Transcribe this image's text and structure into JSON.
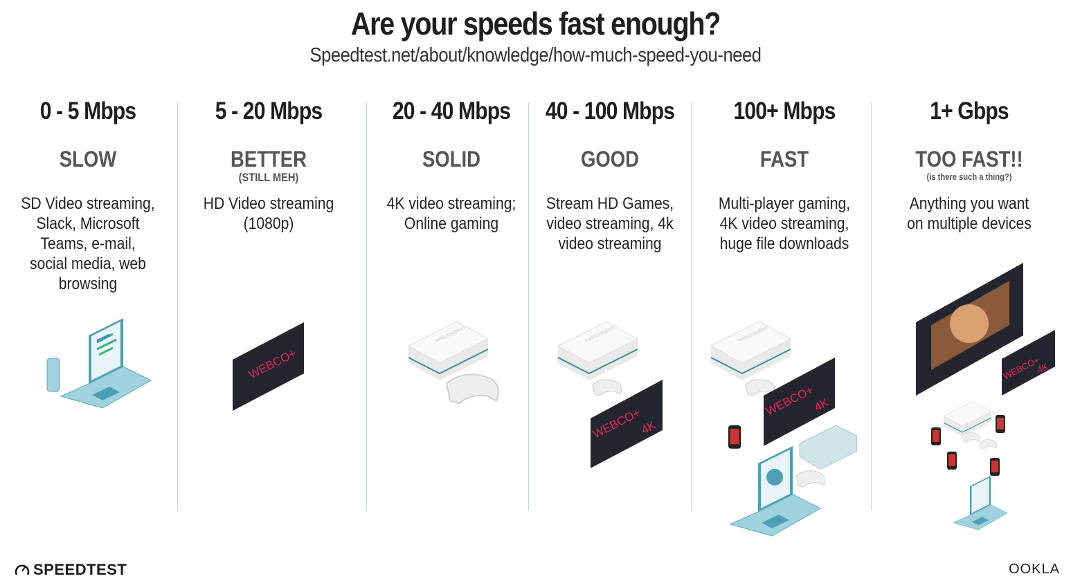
{
  "header": {
    "title": "Are your speeds fast enough?",
    "subtitle": "Speedtest.net/about/knowledge/how-much-speed-you-need"
  },
  "tiers": [
    {
      "speed": "0 - 5 Mbps",
      "rating": "SLOW",
      "note": "",
      "description": "SD Video streaming, Slack, Microsoft Teams, e-mail, social media, web browsing"
    },
    {
      "speed": "5 - 20 Mbps",
      "rating": "BETTER",
      "note": "(STILL MEH)",
      "description": "HD Video streaming (1080p)"
    },
    {
      "speed": "20 - 40 Mbps",
      "rating": "SOLID",
      "note": "",
      "description": "4K video streaming; Online gaming"
    },
    {
      "speed": "40 - 100 Mbps",
      "rating": "GOOD",
      "note": "",
      "description": "Stream HD Games, video streaming, 4k video streaming"
    },
    {
      "speed": "100+ Mbps",
      "rating": "FAST",
      "note": "",
      "description": "Multi-player gaming, 4K video streaming, huge file downloads"
    },
    {
      "speed": "1+ Gbps",
      "rating": "TOO FAST!!",
      "note": "(is there such a thing?)",
      "description": "Anything you want on multiple devices"
    }
  ],
  "illustrations": {
    "tv_brand": "WEBCO+",
    "tv_4k": "4K",
    "console_brand": "webcostation"
  },
  "footer": {
    "left_logo": "SPEEDTEST",
    "right_logo": "OOKLA"
  },
  "colors": {
    "tv": "#23262e",
    "tv_text": "#e8245a",
    "laptop": "#8ec9d6",
    "console": "#f1f1f1",
    "divider": "#c9d3d6"
  }
}
